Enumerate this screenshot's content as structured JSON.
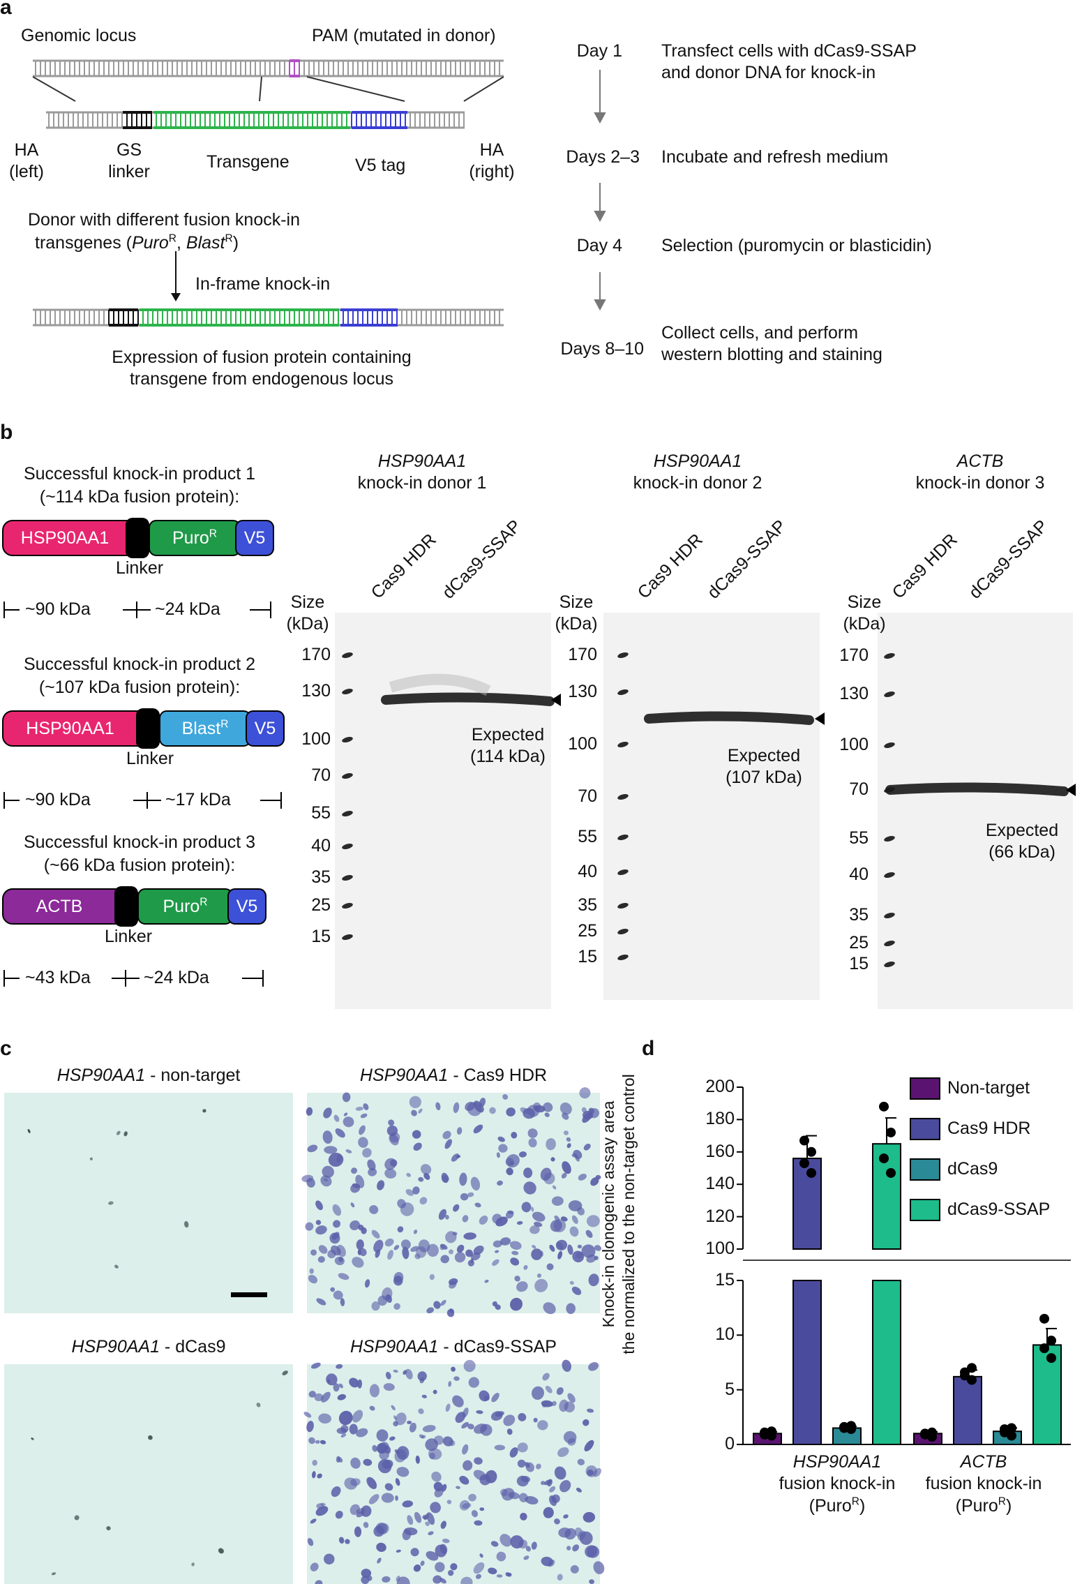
{
  "panel_labels": {
    "a": "a",
    "b": "b",
    "c": "c",
    "d": "d"
  },
  "panel_a": {
    "genomic_locus": "Genomic locus",
    "pam": "PAM (mutated in donor)",
    "ha_left": [
      "HA",
      "(left)"
    ],
    "gs_linker": [
      "GS",
      "linker"
    ],
    "transgene": "Transgene",
    "v5_tag": "V5 tag",
    "ha_right": [
      "HA",
      "(right)"
    ],
    "donor_line1": "Donor with different fusion knock-in",
    "donor_line2_pre": "transgenes (",
    "puro": "Puro",
    "sup_r": "R",
    "comma": ", ",
    "blast": "Blast",
    "close_paren": ")",
    "inframe": "In-frame knock-in",
    "expr_line1": "Expression of fusion protein containing",
    "expr_line2": "transgene from endogenous locus",
    "timeline": [
      {
        "day": "Day 1",
        "lines": [
          "Transfect cells with dCas9-SSAP",
          "and donor DNA for knock-in"
        ]
      },
      {
        "day": "Days 2–3",
        "lines": [
          "Incubate and refresh medium"
        ]
      },
      {
        "day": "Day 4",
        "lines": [
          "Selection (puromycin or blasticidin)"
        ]
      },
      {
        "day": "Days 8–10",
        "lines": [
          "Collect cells, and perform",
          "western blotting and staining"
        ]
      }
    ]
  },
  "panel_b": {
    "products": [
      {
        "title": "Successful knock-in product 1",
        "subtitle": "(~114 kDa fusion protein):",
        "gene": "HSP90AA1",
        "marker": "Puro",
        "marker_sup": "R",
        "v5": "V5",
        "linker": "Linker",
        "left_kda": "~90 kDa",
        "right_kda": "~24 kDa"
      },
      {
        "title": "Successful knock-in product 2",
        "subtitle": "(~107 kDa fusion protein):",
        "gene": "HSP90AA1",
        "marker": "Blast",
        "marker_sup": "R",
        "v5": "V5",
        "linker": "Linker",
        "left_kda": "~90 kDa",
        "right_kda": "~17 kDa"
      },
      {
        "title": "Successful knock-in product 3",
        "subtitle": "(~66 kDa fusion protein):",
        "gene": "ACTB",
        "marker": "Puro",
        "marker_sup": "R",
        "v5": "V5",
        "linker": "Linker",
        "left_kda": "~43 kDa",
        "right_kda": "~24 kDa"
      }
    ],
    "size_label": [
      "Size",
      "(kDa)"
    ],
    "blots": [
      {
        "gene": "HSP90AA1",
        "donor": "knock-in donor 1",
        "lanes": [
          "Cas9 HDR",
          "dCas9-SSAP"
        ],
        "ladder": [
          "170",
          "130",
          "100",
          "70",
          "55",
          "40",
          "35",
          "25",
          "15"
        ],
        "expected": [
          "Expected",
          "(114 kDa)"
        ]
      },
      {
        "gene": "HSP90AA1",
        "donor": "knock-in donor 2",
        "lanes": [
          "Cas9 HDR",
          "dCas9-SSAP"
        ],
        "ladder": [
          "170",
          "130",
          "100",
          "70",
          "55",
          "40",
          "35",
          "25",
          "15"
        ],
        "expected": [
          "Expected",
          "(107 kDa)"
        ]
      },
      {
        "gene": "ACTB",
        "donor": "knock-in donor 3",
        "lanes": [
          "Cas9 HDR",
          "dCas9-SSAP"
        ],
        "ladder": [
          "170",
          "130",
          "100",
          "70",
          "55",
          "40",
          "35",
          "25",
          "15"
        ],
        "expected": [
          "Expected",
          "(66 kDa)"
        ]
      }
    ]
  },
  "panel_c": {
    "images": [
      {
        "gene": "HSP90AA1",
        "condition": " - non-target",
        "density": "sparse"
      },
      {
        "gene": "HSP90AA1",
        "condition": " - Cas9 HDR",
        "density": "dense"
      },
      {
        "gene": "HSP90AA1",
        "condition": " - dCas9",
        "density": "sparse"
      },
      {
        "gene": "HSP90AA1",
        "condition": " - dCas9-SSAP",
        "density": "dense"
      }
    ],
    "colors": {
      "background": "#dcefeb",
      "colony": "#5b5fa8"
    }
  },
  "chart_data": {
    "type": "bar",
    "ylabel": [
      "Knock-in clonogenic assay area",
      "the normalized to the non-target control"
    ],
    "axis_break": {
      "lower_ylim": [
        0,
        15
      ],
      "lower_ticks": [
        0,
        5,
        10,
        15
      ],
      "upper_ylim": [
        100,
        200
      ],
      "upper_ticks": [
        100,
        120,
        140,
        160,
        180,
        200
      ]
    },
    "groups": [
      {
        "gene": "HSP90AA1",
        "line2": "fusion knock-in",
        "line3": "(Puro",
        "sup": "R",
        "line3_end": ")"
      },
      {
        "gene": "ACTB",
        "line2": "fusion knock-in",
        "line3": "(Puro",
        "sup": "R",
        "line3_end": ")"
      }
    ],
    "series": [
      {
        "name": "Non-target",
        "color": "#5a1470",
        "values": [
          1.0,
          1.0
        ],
        "errors": [
          0.15,
          0.15
        ],
        "points": [
          [
            1.1,
            0.8,
            0.9,
            1.2
          ],
          [
            1.0,
            0.7,
            0.9,
            1.1
          ]
        ]
      },
      {
        "name": "Cas9 HDR",
        "color": "#4a4b9c",
        "values": [
          156,
          6.2
        ],
        "errors": [
          14,
          0.6
        ],
        "points": [
          [
            167,
            147,
            153,
            160
          ],
          [
            6.6,
            5.9,
            6.3,
            7.0
          ]
        ]
      },
      {
        "name": "dCas9",
        "color": "#2a8a96",
        "values": [
          1.5,
          1.2
        ],
        "errors": [
          0.15,
          0.3
        ],
        "points": [
          [
            1.6,
            1.4,
            1.5,
            1.7
          ],
          [
            1.4,
            0.8,
            1.1,
            1.5
          ]
        ]
      },
      {
        "name": "dCas9-SSAP",
        "color": "#1dbc8a",
        "values": [
          165,
          9.1
        ],
        "errors": [
          16,
          1.5
        ],
        "points": [
          [
            188,
            172,
            156,
            147
          ],
          [
            11.5,
            9.5,
            8.8,
            7.9
          ]
        ]
      }
    ]
  }
}
